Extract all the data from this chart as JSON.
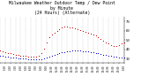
{
  "title_line1": "Milwaukee Weather Outdoor Temp / Dew Point",
  "title_line2": "by Minute",
  "title_line3": "(24 Hours) (Alternate)",
  "title_fontsize": 3.5,
  "background_color": "#ffffff",
  "plot_bg_color": "#ffffff",
  "grid_color": "#888888",
  "red_color": "#cc0000",
  "blue_color": "#0000cc",
  "ylim": [
    25,
    75
  ],
  "xlim": [
    0,
    1440
  ],
  "yticks": [
    30,
    40,
    50,
    60,
    70
  ],
  "ytick_labels": [
    "30",
    "40",
    "50",
    "60",
    "70"
  ],
  "xticks": [
    0,
    60,
    120,
    180,
    240,
    300,
    360,
    420,
    480,
    540,
    600,
    660,
    720,
    780,
    840,
    900,
    960,
    1020,
    1080,
    1140,
    1200,
    1260,
    1320,
    1380,
    1440
  ],
  "xtick_labels": [
    "0:00",
    "1:00",
    "2:00",
    "3:00",
    "4:00",
    "5:00",
    "6:00",
    "7:00",
    "8:00",
    "9:00",
    "10:00",
    "11:00",
    "12:00",
    "13:00",
    "14:00",
    "15:00",
    "16:00",
    "17:00",
    "18:00",
    "19:00",
    "20:00",
    "21:00",
    "22:00",
    "23:00",
    "0:00"
  ],
  "temp_x": [
    0,
    30,
    60,
    90,
    120,
    150,
    180,
    210,
    240,
    270,
    300,
    330,
    360,
    390,
    420,
    450,
    480,
    510,
    540,
    570,
    600,
    630,
    660,
    690,
    720,
    750,
    780,
    810,
    840,
    870,
    900,
    930,
    960,
    990,
    1020,
    1050,
    1080,
    1110,
    1140,
    1170,
    1200,
    1230,
    1260,
    1290,
    1320,
    1350,
    1380,
    1410,
    1440
  ],
  "temp_y": [
    38,
    37,
    36,
    35,
    35,
    34,
    33,
    33,
    32,
    32,
    32,
    31,
    31,
    31,
    31,
    32,
    35,
    40,
    46,
    52,
    55,
    57,
    59,
    61,
    63,
    64,
    64,
    63,
    63,
    62,
    61,
    60,
    59,
    58,
    57,
    56,
    55,
    54,
    52,
    50,
    48,
    46,
    45,
    44,
    43,
    43,
    44,
    45,
    46
  ],
  "dew_x": [
    0,
    30,
    60,
    90,
    120,
    150,
    180,
    210,
    240,
    270,
    300,
    330,
    360,
    390,
    420,
    450,
    480,
    510,
    540,
    570,
    600,
    630,
    660,
    690,
    720,
    750,
    780,
    810,
    840,
    870,
    900,
    930,
    960,
    990,
    1020,
    1050,
    1080,
    1110,
    1140,
    1170,
    1200,
    1230,
    1260,
    1290,
    1320,
    1350,
    1380,
    1410,
    1440
  ],
  "dew_y": [
    32,
    32,
    31,
    31,
    30,
    30,
    30,
    29,
    29,
    29,
    29,
    28,
    28,
    28,
    28,
    28,
    28,
    29,
    30,
    31,
    32,
    33,
    34,
    35,
    36,
    36,
    37,
    37,
    38,
    38,
    38,
    38,
    37,
    37,
    37,
    36,
    36,
    35,
    35,
    34,
    33,
    33,
    32,
    32,
    31,
    31,
    30,
    30,
    30
  ]
}
